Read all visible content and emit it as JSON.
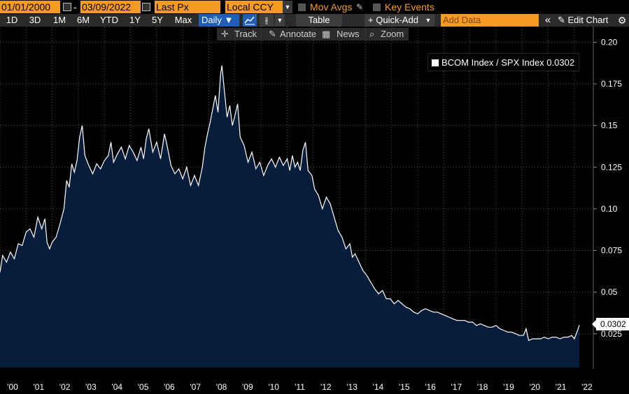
{
  "toolbar": {
    "start_date": "01/01/2000",
    "date_separator": "-",
    "end_date": "03/09/2022",
    "field": "Last Px",
    "currency": "Local CCY",
    "mov_avgs": "Mov Avgs",
    "key_events": "Key Events",
    "periods": [
      "1D",
      "3D",
      "1M",
      "6M",
      "YTD",
      "1Y",
      "5Y",
      "Max"
    ],
    "frequency": "Daily ▼",
    "table": "Table",
    "quick_add": "+ Quick-Add",
    "add_data_placeholder": "Add Data",
    "collapse": "«",
    "edit_chart": "✎ Edit Chart",
    "settings_icon": "gear-icon",
    "track": "Track",
    "annotate": "Annotate",
    "news": "News",
    "zoom": "Zoom"
  },
  "chart_data": {
    "type": "area",
    "legend": "BCOM Index / SPX Index 0.0302",
    "last_value_label": "0.0302",
    "x_tick_labels": [
      "'00",
      "'01",
      "'02",
      "'03",
      "'04",
      "'05",
      "'06",
      "'07",
      "'08",
      "'09",
      "'10",
      "'11",
      "'12",
      "'13",
      "'14",
      "'15",
      "'16",
      "'17",
      "'18",
      "'19",
      "'20",
      "'21",
      "'22"
    ],
    "y_tick_labels": [
      "0.20",
      "0.175",
      "0.15",
      "0.125",
      "0.10",
      "0.075",
      "0.05",
      "0.025"
    ],
    "ylim": [
      0.0,
      0.2
    ],
    "xlim": [
      2000.0,
      2022.19
    ],
    "series": [
      {
        "name": "BCOM Index / SPX Index",
        "points": [
          [
            2000.0,
            0.062
          ],
          [
            2000.1,
            0.072
          ],
          [
            2000.25,
            0.068
          ],
          [
            2000.4,
            0.074
          ],
          [
            2000.55,
            0.07
          ],
          [
            2000.7,
            0.079
          ],
          [
            2000.85,
            0.078
          ],
          [
            2001.0,
            0.086
          ],
          [
            2001.15,
            0.088
          ],
          [
            2001.3,
            0.083
          ],
          [
            2001.45,
            0.095
          ],
          [
            2001.6,
            0.088
          ],
          [
            2001.72,
            0.094
          ],
          [
            2001.8,
            0.08
          ],
          [
            2001.9,
            0.076
          ],
          [
            2002.0,
            0.08
          ],
          [
            2002.15,
            0.083
          ],
          [
            2002.3,
            0.091
          ],
          [
            2002.45,
            0.1
          ],
          [
            2002.55,
            0.117
          ],
          [
            2002.65,
            0.113
          ],
          [
            2002.75,
            0.127
          ],
          [
            2002.85,
            0.122
          ],
          [
            2002.95,
            0.129
          ],
          [
            2003.05,
            0.143
          ],
          [
            2003.15,
            0.15
          ],
          [
            2003.25,
            0.132
          ],
          [
            2003.4,
            0.126
          ],
          [
            2003.55,
            0.121
          ],
          [
            2003.7,
            0.127
          ],
          [
            2003.85,
            0.124
          ],
          [
            2004.0,
            0.129
          ],
          [
            2004.15,
            0.132
          ],
          [
            2004.25,
            0.14
          ],
          [
            2004.35,
            0.128
          ],
          [
            2004.5,
            0.133
          ],
          [
            2004.65,
            0.137
          ],
          [
            2004.8,
            0.13
          ],
          [
            2004.95,
            0.138
          ],
          [
            2005.1,
            0.134
          ],
          [
            2005.25,
            0.129
          ],
          [
            2005.4,
            0.137
          ],
          [
            2005.5,
            0.13
          ],
          [
            2005.6,
            0.142
          ],
          [
            2005.7,
            0.148
          ],
          [
            2005.85,
            0.134
          ],
          [
            2006.0,
            0.14
          ],
          [
            2006.15,
            0.13
          ],
          [
            2006.3,
            0.145
          ],
          [
            2006.4,
            0.138
          ],
          [
            2006.55,
            0.126
          ],
          [
            2006.7,
            0.121
          ],
          [
            2006.85,
            0.124
          ],
          [
            2007.0,
            0.118
          ],
          [
            2007.15,
            0.125
          ],
          [
            2007.3,
            0.114
          ],
          [
            2007.45,
            0.12
          ],
          [
            2007.6,
            0.114
          ],
          [
            2007.75,
            0.125
          ],
          [
            2007.85,
            0.137
          ],
          [
            2007.95,
            0.145
          ],
          [
            2008.05,
            0.152
          ],
          [
            2008.15,
            0.16
          ],
          [
            2008.25,
            0.168
          ],
          [
            2008.35,
            0.158
          ],
          [
            2008.45,
            0.181
          ],
          [
            2008.5,
            0.186
          ],
          [
            2008.6,
            0.17
          ],
          [
            2008.7,
            0.155
          ],
          [
            2008.8,
            0.162
          ],
          [
            2008.9,
            0.15
          ],
          [
            2009.0,
            0.156
          ],
          [
            2009.1,
            0.163
          ],
          [
            2009.2,
            0.143
          ],
          [
            2009.35,
            0.138
          ],
          [
            2009.5,
            0.128
          ],
          [
            2009.65,
            0.134
          ],
          [
            2009.8,
            0.124
          ],
          [
            2009.95,
            0.128
          ],
          [
            2010.1,
            0.12
          ],
          [
            2010.25,
            0.126
          ],
          [
            2010.4,
            0.13
          ],
          [
            2010.55,
            0.125
          ],
          [
            2010.7,
            0.131
          ],
          [
            2010.85,
            0.126
          ],
          [
            2011.0,
            0.13
          ],
          [
            2011.1,
            0.123
          ],
          [
            2011.2,
            0.132
          ],
          [
            2011.3,
            0.125
          ],
          [
            2011.4,
            0.128
          ],
          [
            2011.5,
            0.123
          ],
          [
            2011.6,
            0.135
          ],
          [
            2011.7,
            0.14
          ],
          [
            2011.8,
            0.123
          ],
          [
            2011.95,
            0.12
          ],
          [
            2012.05,
            0.112
          ],
          [
            2012.2,
            0.108
          ],
          [
            2012.35,
            0.1
          ],
          [
            2012.5,
            0.107
          ],
          [
            2012.65,
            0.103
          ],
          [
            2012.8,
            0.095
          ],
          [
            2012.95,
            0.087
          ],
          [
            2013.1,
            0.083
          ],
          [
            2013.25,
            0.076
          ],
          [
            2013.4,
            0.079
          ],
          [
            2013.5,
            0.071
          ],
          [
            2013.6,
            0.073
          ],
          [
            2013.75,
            0.068
          ],
          [
            2013.9,
            0.063
          ],
          [
            2014.05,
            0.06
          ],
          [
            2014.2,
            0.056
          ],
          [
            2014.35,
            0.052
          ],
          [
            2014.5,
            0.049
          ],
          [
            2014.65,
            0.051
          ],
          [
            2014.8,
            0.046
          ],
          [
            2014.95,
            0.046
          ],
          [
            2015.1,
            0.043
          ],
          [
            2015.25,
            0.045
          ],
          [
            2015.4,
            0.043
          ],
          [
            2015.55,
            0.041
          ],
          [
            2015.7,
            0.04
          ],
          [
            2015.85,
            0.038
          ],
          [
            2016.0,
            0.037
          ],
          [
            2016.15,
            0.039
          ],
          [
            2016.3,
            0.04
          ],
          [
            2016.45,
            0.039
          ],
          [
            2016.6,
            0.038
          ],
          [
            2016.75,
            0.038
          ],
          [
            2016.9,
            0.037
          ],
          [
            2017.05,
            0.036
          ],
          [
            2017.2,
            0.035
          ],
          [
            2017.35,
            0.034
          ],
          [
            2017.5,
            0.033
          ],
          [
            2017.65,
            0.033
          ],
          [
            2017.8,
            0.033
          ],
          [
            2017.95,
            0.032
          ],
          [
            2018.1,
            0.032
          ],
          [
            2018.25,
            0.03
          ],
          [
            2018.4,
            0.031
          ],
          [
            2018.55,
            0.03
          ],
          [
            2018.7,
            0.029
          ],
          [
            2018.85,
            0.029
          ],
          [
            2019.0,
            0.03
          ],
          [
            2019.15,
            0.028
          ],
          [
            2019.3,
            0.027
          ],
          [
            2019.45,
            0.026
          ],
          [
            2019.6,
            0.026
          ],
          [
            2019.75,
            0.025
          ],
          [
            2019.9,
            0.024
          ],
          [
            2020.05,
            0.024
          ],
          [
            2020.15,
            0.028
          ],
          [
            2020.25,
            0.021
          ],
          [
            2020.4,
            0.022
          ],
          [
            2020.55,
            0.022
          ],
          [
            2020.7,
            0.022
          ],
          [
            2020.85,
            0.023
          ],
          [
            2021.0,
            0.022
          ],
          [
            2021.15,
            0.023
          ],
          [
            2021.3,
            0.023
          ],
          [
            2021.45,
            0.022
          ],
          [
            2021.6,
            0.023
          ],
          [
            2021.75,
            0.023
          ],
          [
            2021.9,
            0.024
          ],
          [
            2022.0,
            0.022
          ],
          [
            2022.1,
            0.026
          ],
          [
            2022.19,
            0.0302
          ]
        ]
      }
    ]
  }
}
